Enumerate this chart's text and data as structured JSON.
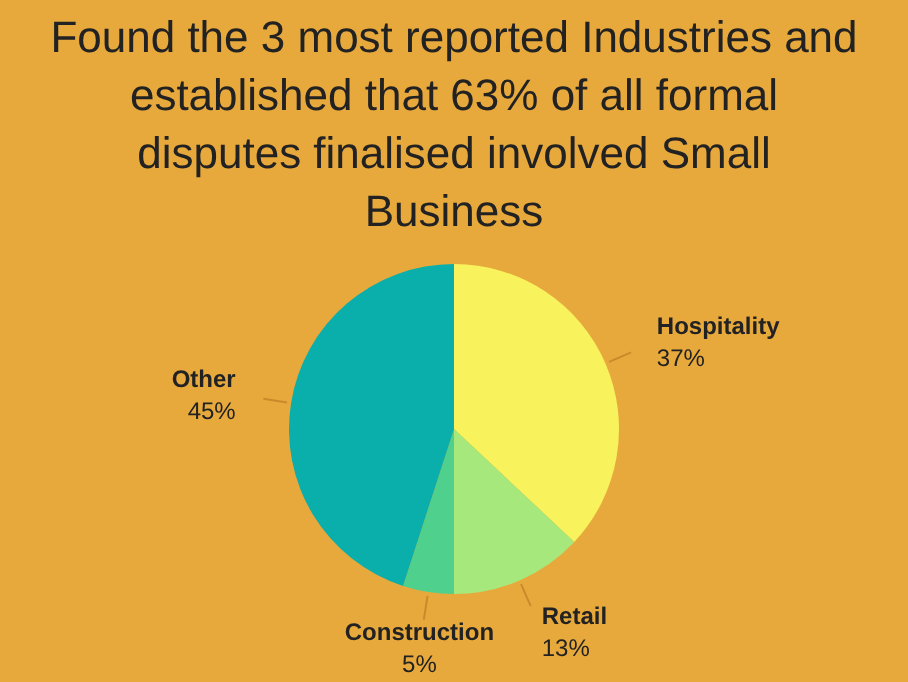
{
  "chart_data": {
    "type": "pie",
    "title": "Found the 3 most reported Industries and established that 63% of all formal disputes finalised involved Small Business",
    "categories": [
      "Hospitality",
      "Retail",
      "Construction",
      "Other"
    ],
    "values": [
      37,
      13,
      5,
      45
    ],
    "colors": [
      "#f8f35c",
      "#a6e87c",
      "#4fd08c",
      "#0aaeaa"
    ],
    "value_labels": [
      "37%",
      "13%",
      "5%",
      "45%"
    ],
    "legend": false
  }
}
